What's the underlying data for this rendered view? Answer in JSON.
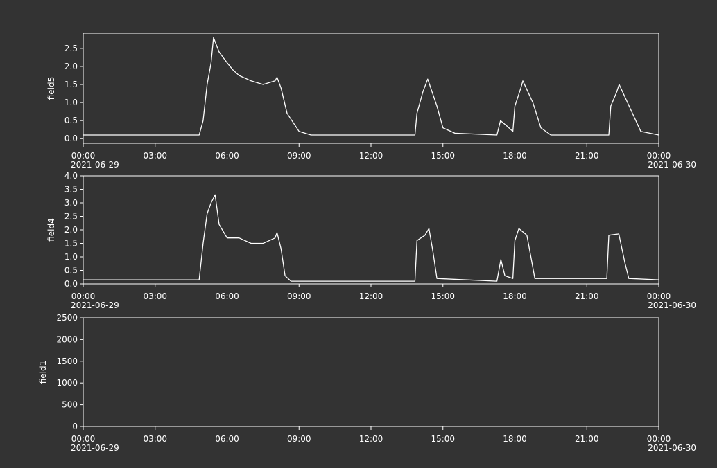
{
  "chart_data": [
    {
      "type": "line",
      "ylabel": "field5",
      "xlim": [
        "2021-06-29T00:00",
        "2021-06-30T00:00"
      ],
      "xticks": [
        {
          "value": "2021-06-29T00:00",
          "label": "00:00",
          "date": "2021-06-29"
        },
        {
          "value": "2021-06-29T03:00",
          "label": "03:00"
        },
        {
          "value": "2021-06-29T06:00",
          "label": "06:00"
        },
        {
          "value": "2021-06-29T09:00",
          "label": "09:00"
        },
        {
          "value": "2021-06-29T12:00",
          "label": "12:00"
        },
        {
          "value": "2021-06-29T15:00",
          "label": "15:00"
        },
        {
          "value": "2021-06-29T18:00",
          "label": "18:00"
        },
        {
          "value": "2021-06-29T21:00",
          "label": "21:00"
        },
        {
          "value": "2021-06-30T00:00",
          "label": "00:00",
          "date": "2021-06-30"
        }
      ],
      "ylim": [
        -0.13,
        2.92
      ],
      "yticks": [
        {
          "value": 0,
          "label": "0.0"
        },
        {
          "value": 0.5,
          "label": "0.5"
        },
        {
          "value": 1,
          "label": "1.0"
        },
        {
          "value": 1.5,
          "label": "1.5"
        },
        {
          "value": 2,
          "label": "2.0"
        },
        {
          "value": 2.5,
          "label": "2.5"
        }
      ],
      "x": [
        "2021-06-29T00:00",
        "2021-06-29T04:50",
        "2021-06-29T05:00",
        "2021-06-29T05:10",
        "2021-06-29T05:20",
        "2021-06-29T05:26",
        "2021-06-29T05:40",
        "2021-06-29T06:00",
        "2021-06-29T06:15",
        "2021-06-29T06:30",
        "2021-06-29T07:00",
        "2021-06-29T07:30",
        "2021-06-29T07:45",
        "2021-06-29T08:00",
        "2021-06-29T08:05",
        "2021-06-29T08:15",
        "2021-06-29T08:30",
        "2021-06-29T09:00",
        "2021-06-29T09:30",
        "2021-06-29T13:50",
        "2021-06-29T13:55",
        "2021-06-29T14:10",
        "2021-06-29T14:22",
        "2021-06-29T14:45",
        "2021-06-29T15:00",
        "2021-06-29T15:30",
        "2021-06-29T17:15",
        "2021-06-29T17:24",
        "2021-06-29T17:40",
        "2021-06-29T17:55",
        "2021-06-29T18:00",
        "2021-06-29T18:15",
        "2021-06-29T18:20",
        "2021-06-29T18:45",
        "2021-06-29T19:05",
        "2021-06-29T19:30",
        "2021-06-29T21:55",
        "2021-06-29T22:00",
        "2021-06-29T22:15",
        "2021-06-29T22:21",
        "2021-06-29T22:50",
        "2021-06-29T23:15",
        "2021-06-30T00:00"
      ],
      "series": [
        {
          "name": "field5",
          "color": "#ffffff",
          "values": [
            0.1,
            0.1,
            0.5,
            1.5,
            2.1,
            2.8,
            2.4,
            2.1,
            1.9,
            1.75,
            1.6,
            1.5,
            1.55,
            1.6,
            1.7,
            1.4,
            0.7,
            0.2,
            0.1,
            0.1,
            0.7,
            1.3,
            1.65,
            0.9,
            0.3,
            0.15,
            0.1,
            0.5,
            0.35,
            0.2,
            0.9,
            1.4,
            1.6,
            1.0,
            0.3,
            0.1,
            0.1,
            0.9,
            1.3,
            1.5,
            0.8,
            0.2,
            0.1
          ]
        }
      ]
    },
    {
      "type": "line",
      "ylabel": "field4",
      "xlim": [
        "2021-06-29T00:00",
        "2021-06-30T00:00"
      ],
      "xticks": [
        {
          "value": "2021-06-29T00:00",
          "label": "00:00",
          "date": "2021-06-29"
        },
        {
          "value": "2021-06-29T03:00",
          "label": "03:00"
        },
        {
          "value": "2021-06-29T06:00",
          "label": "06:00"
        },
        {
          "value": "2021-06-29T09:00",
          "label": "09:00"
        },
        {
          "value": "2021-06-29T12:00",
          "label": "12:00"
        },
        {
          "value": "2021-06-29T15:00",
          "label": "15:00"
        },
        {
          "value": "2021-06-29T18:00",
          "label": "18:00"
        },
        {
          "value": "2021-06-29T21:00",
          "label": "21:00"
        },
        {
          "value": "2021-06-30T00:00",
          "label": "00:00",
          "date": "2021-06-30"
        }
      ],
      "ylim": [
        0,
        4
      ],
      "yticks": [
        {
          "value": 0,
          "label": "0.0"
        },
        {
          "value": 0.5,
          "label": "0.5"
        },
        {
          "value": 1,
          "label": "1.0"
        },
        {
          "value": 1.5,
          "label": "1.5"
        },
        {
          "value": 2,
          "label": "2.0"
        },
        {
          "value": 2.5,
          "label": "2.5"
        },
        {
          "value": 3,
          "label": "3.0"
        },
        {
          "value": 3.5,
          "label": "3.5"
        },
        {
          "value": 4,
          "label": "4.0"
        }
      ],
      "x": [
        "2021-06-29T00:00",
        "2021-06-29T04:50",
        "2021-06-29T05:00",
        "2021-06-29T05:10",
        "2021-06-29T05:20",
        "2021-06-29T05:30",
        "2021-06-29T05:40",
        "2021-06-29T06:00",
        "2021-06-29T06:30",
        "2021-06-29T07:00",
        "2021-06-29T07:30",
        "2021-06-29T08:00",
        "2021-06-29T08:05",
        "2021-06-29T08:15",
        "2021-06-29T08:25",
        "2021-06-29T08:40",
        "2021-06-29T13:50",
        "2021-06-29T13:55",
        "2021-06-29T14:15",
        "2021-06-29T14:25",
        "2021-06-29T14:35",
        "2021-06-29T14:45",
        "2021-06-29T17:15",
        "2021-06-29T17:25",
        "2021-06-29T17:35",
        "2021-06-29T17:55",
        "2021-06-29T18:00",
        "2021-06-29T18:10",
        "2021-06-29T18:30",
        "2021-06-29T18:40",
        "2021-06-29T18:50",
        "2021-06-29T21:50",
        "2021-06-29T21:55",
        "2021-06-29T22:20",
        "2021-06-29T22:35",
        "2021-06-29T22:45",
        "2021-06-30T00:00"
      ],
      "series": [
        {
          "name": "field4",
          "color": "#ffffff",
          "values": [
            0.15,
            0.15,
            1.5,
            2.6,
            3.0,
            3.3,
            2.2,
            1.7,
            1.7,
            1.5,
            1.5,
            1.7,
            1.9,
            1.3,
            0.3,
            0.1,
            0.1,
            1.6,
            1.8,
            2.05,
            1.2,
            0.2,
            0.1,
            0.9,
            0.3,
            0.2,
            1.6,
            2.05,
            1.8,
            1.0,
            0.2,
            0.2,
            1.8,
            1.85,
            0.8,
            0.2,
            0.15
          ]
        }
      ]
    },
    {
      "type": "line",
      "ylabel": "field1",
      "xlim": [
        "2021-06-29T00:00",
        "2021-06-30T00:00"
      ],
      "xticks": [
        {
          "value": "2021-06-29T00:00",
          "label": "00:00",
          "date": "2021-06-29"
        },
        {
          "value": "2021-06-29T03:00",
          "label": "03:00"
        },
        {
          "value": "2021-06-29T06:00",
          "label": "06:00"
        },
        {
          "value": "2021-06-29T09:00",
          "label": "09:00"
        },
        {
          "value": "2021-06-29T12:00",
          "label": "12:00"
        },
        {
          "value": "2021-06-29T15:00",
          "label": "15:00"
        },
        {
          "value": "2021-06-29T18:00",
          "label": "18:00"
        },
        {
          "value": "2021-06-29T21:00",
          "label": "21:00"
        },
        {
          "value": "2021-06-30T00:00",
          "label": "00:00",
          "date": "2021-06-30"
        }
      ],
      "ylim": [
        0,
        2500
      ],
      "yticks": [
        0,
        500,
        1000,
        1500,
        2000,
        2500
      ]
    }
  ]
}
